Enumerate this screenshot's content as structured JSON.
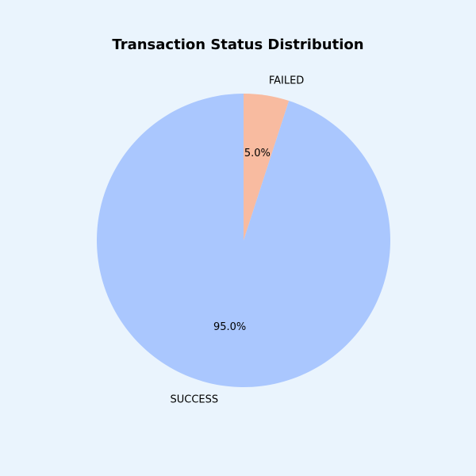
{
  "chart_data": {
    "type": "pie",
    "title": "Transaction Status Distribution",
    "slices": [
      {
        "label": "FAILED",
        "value": 5.0,
        "pct_label": "5.0%",
        "color": "#f8bba0"
      },
      {
        "label": "SUCCESS",
        "value": 95.0,
        "pct_label": "95.0%",
        "color": "#aac7fe"
      }
    ],
    "start_angle_deg": 90,
    "direction": "clockwise",
    "legend": "none"
  },
  "colors": {
    "background": "#eaf4fd"
  }
}
